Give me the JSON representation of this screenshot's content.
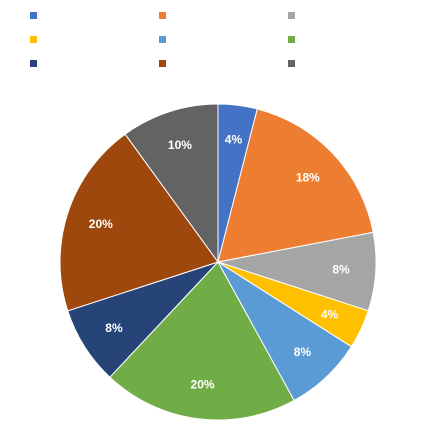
{
  "chart_data": {
    "type": "pie",
    "title": "",
    "categories": [
      "",
      "",
      "",
      "",
      "",
      "",
      "",
      "",
      ""
    ],
    "values": [
      4,
      18,
      8,
      4,
      8,
      20,
      8,
      20,
      10
    ],
    "labels": [
      "4%",
      "18%",
      "8%",
      "4%",
      "8%",
      "20%",
      "8%",
      "20%",
      "10%"
    ],
    "colors": [
      "#4472C4",
      "#ED7D31",
      "#A5A5A5",
      "#FFC000",
      "#5B9BD5",
      "#70AD47",
      "#264478",
      "#9E480E",
      "#636363"
    ],
    "legend": {
      "placement": "top",
      "columns": 3
    },
    "start_angle_deg": 0,
    "direction": "clockwise"
  }
}
